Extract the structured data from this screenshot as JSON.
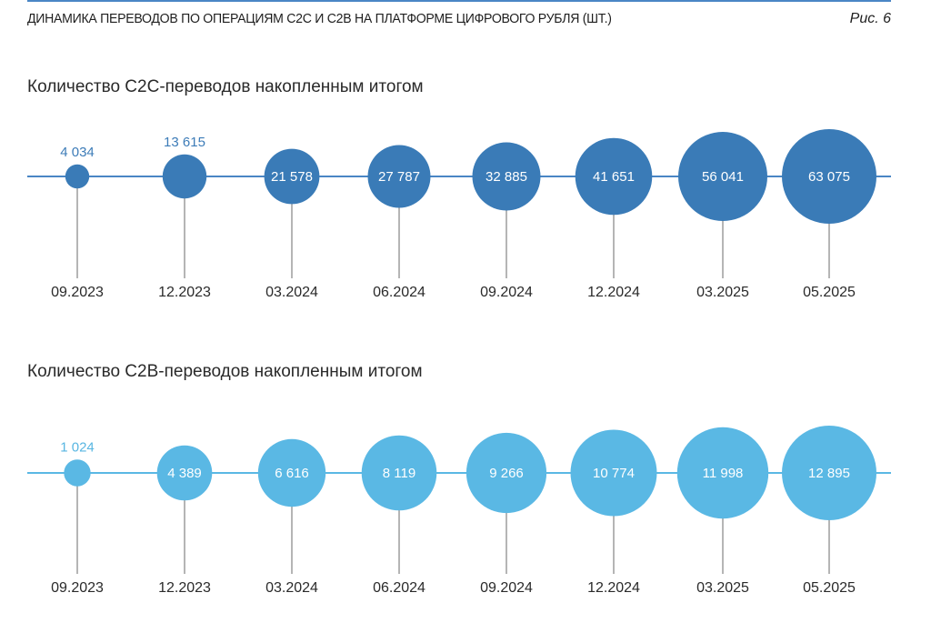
{
  "figure": {
    "title": "ДИНАМИКА ПЕРЕВОДОВ ПО ОПЕРАЦИЯМ С2С И С2В НА ПЛАТФОРМЕ ЦИФРОВОГО РУБЛЯ (ШТ.)",
    "label": "Рис. 6"
  },
  "colors": {
    "c2c": "#3a7bb7",
    "c2b": "#5ab8e4",
    "axis_c2c": "#4a86c5",
    "axis_c2b": "#5ab8e4",
    "stem": "#b5b5b5"
  },
  "chart_data": [
    {
      "type": "bubble",
      "title": "Количество C2C-переводов накопленным итогом",
      "categories": [
        "09.2023",
        "12.2023",
        "03.2024",
        "06.2024",
        "09.2024",
        "12.2024",
        "03.2025",
        "05.2025"
      ],
      "values": [
        4034,
        13615,
        21578,
        27787,
        32885,
        41651,
        56041,
        63075
      ],
      "value_labels": [
        "4 034",
        "13 615",
        "21 578",
        "27 787",
        "32 885",
        "41 651",
        "56 041",
        "63 075"
      ]
    },
    {
      "type": "bubble",
      "title": "Количество C2B-переводов накопленным итогом",
      "categories": [
        "09.2023",
        "12.2023",
        "03.2024",
        "06.2024",
        "09.2024",
        "12.2024",
        "03.2025",
        "05.2025"
      ],
      "values": [
        1024,
        4389,
        6616,
        8119,
        9266,
        10774,
        11998,
        12895
      ],
      "value_labels": [
        "1 024",
        "4 389",
        "6 616",
        "8 119",
        "9 266",
        "10 774",
        "11 998",
        "12 895"
      ]
    }
  ]
}
